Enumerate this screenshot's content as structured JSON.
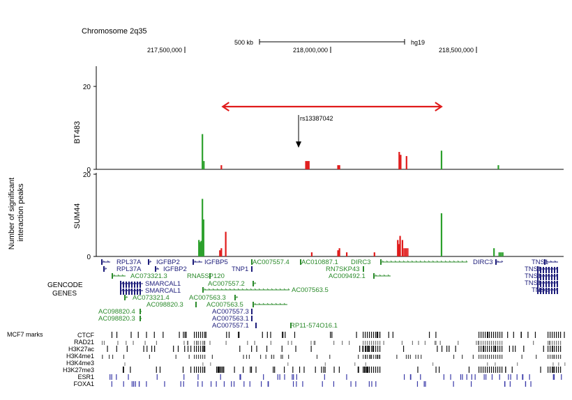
{
  "header": {
    "chromosome": "Chromosome 2q35",
    "scale_label": "500 kb",
    "assembly": "hg19",
    "coord_ticks": [
      {
        "label": "217,500,000",
        "pos": 217500000
      },
      {
        "label": "218,000,000",
        "pos": 218000000
      },
      {
        "label": "218,500,000",
        "pos": 218500000
      }
    ]
  },
  "chart_data": {
    "type": "bar",
    "ylabel": "Number of significant interaction peaks",
    "snp_label": "rs13387042",
    "series_colors": {
      "green": "#2ca02c",
      "red": "#e01b1b"
    },
    "panels": [
      {
        "name": "BT483",
        "ylim": [
          0,
          20
        ],
        "yticks": [
          "20",
          "0"
        ],
        "bars": [
          {
            "x": 217560000,
            "value": 8.5,
            "color": "green"
          },
          {
            "x": 217565000,
            "value": 2.0,
            "color": "green"
          },
          {
            "x": 217625000,
            "value": 1.0,
            "color": "red"
          },
          {
            "x": 217915000,
            "value": 2.0,
            "color": "red"
          },
          {
            "x": 217920000,
            "value": 2.0,
            "color": "red"
          },
          {
            "x": 217925000,
            "value": 2.0,
            "color": "red"
          },
          {
            "x": 218025000,
            "value": 1.0,
            "color": "red"
          },
          {
            "x": 218030000,
            "value": 1.0,
            "color": "red"
          },
          {
            "x": 218235000,
            "value": 4.2,
            "color": "red"
          },
          {
            "x": 218240000,
            "value": 3.5,
            "color": "red"
          },
          {
            "x": 218260000,
            "value": 3.2,
            "color": "red"
          },
          {
            "x": 218380000,
            "value": 4.5,
            "color": "green"
          },
          {
            "x": 218575000,
            "value": 1.0,
            "color": "green"
          }
        ]
      },
      {
        "name": "SUM44",
        "ylim": [
          0,
          20
        ],
        "yticks": [
          "20",
          "0"
        ],
        "bars": [
          {
            "x": 217548000,
            "value": 4.0,
            "color": "green"
          },
          {
            "x": 217552000,
            "value": 3.5,
            "color": "green"
          },
          {
            "x": 217556000,
            "value": 3.8,
            "color": "green"
          },
          {
            "x": 217560000,
            "value": 14.0,
            "color": "green"
          },
          {
            "x": 217564000,
            "value": 9.0,
            "color": "green"
          },
          {
            "x": 217620000,
            "value": 1.5,
            "color": "red"
          },
          {
            "x": 217625000,
            "value": 2.0,
            "color": "red"
          },
          {
            "x": 217640000,
            "value": 6.0,
            "color": "red"
          },
          {
            "x": 217935000,
            "value": 1.0,
            "color": "red"
          },
          {
            "x": 218025000,
            "value": 1.5,
            "color": "red"
          },
          {
            "x": 218030000,
            "value": 2.0,
            "color": "red"
          },
          {
            "x": 218055000,
            "value": 1.0,
            "color": "red"
          },
          {
            "x": 218150000,
            "value": 1.0,
            "color": "red"
          },
          {
            "x": 218230000,
            "value": 4.0,
            "color": "red"
          },
          {
            "x": 218234000,
            "value": 3.0,
            "color": "red"
          },
          {
            "x": 218238000,
            "value": 5.0,
            "color": "red"
          },
          {
            "x": 218246000,
            "value": 4.0,
            "color": "red"
          },
          {
            "x": 218252000,
            "value": 2.0,
            "color": "red"
          },
          {
            "x": 218258000,
            "value": 2.0,
            "color": "red"
          },
          {
            "x": 218264000,
            "value": 2.0,
            "color": "red"
          },
          {
            "x": 218380000,
            "value": 10.5,
            "color": "green"
          },
          {
            "x": 218560000,
            "value": 2.0,
            "color": "green"
          },
          {
            "x": 218578000,
            "value": 1.0,
            "color": "green"
          },
          {
            "x": 218584000,
            "value": 1.0,
            "color": "green"
          },
          {
            "x": 218590000,
            "value": 1.0,
            "color": "green"
          }
        ]
      }
    ],
    "interaction_span": {
      "start": 217630000,
      "end": 218380000,
      "color": "red"
    },
    "snp_pos": 217890000
  },
  "gencode": {
    "title": "GENCODE",
    "title2": "GENES",
    "labels": [
      "RPL37A",
      "RPL37A",
      "IGFBP2",
      "IGFBP2",
      "IGFBP5",
      "TNP1",
      "AC007557.4",
      "AC010887.1",
      "DIRC3",
      "RN7SKP43",
      "AC009492.1",
      "DIRC3",
      "TNS1",
      "TNS1",
      "TNS1",
      "TNS1",
      "TNS1",
      "AC073321.3",
      "SMARCAL1",
      "SMARCAL1",
      "RNA5SP120",
      "AC007557.2",
      "AC007563.5",
      "AC073321.4",
      "AC098820.3",
      "AC007563.3",
      "AC007563.5",
      "AC098820.4",
      "AC007557.3",
      "AC098820.3",
      "AC007563.1",
      "AC007557.1",
      "RP11-574O16.1"
    ]
  },
  "marks": {
    "title": "MCF7 marks",
    "tracks": [
      "CTCF",
      "RAD21",
      "H3K27ac",
      "H3K4me1",
      "H3K4me3",
      "H3K27me3",
      "ESR1",
      "FOXA1"
    ]
  }
}
